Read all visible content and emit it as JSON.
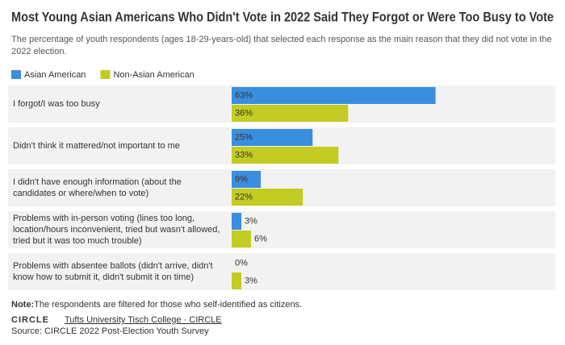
{
  "chart_data": {
    "type": "bar",
    "orientation": "horizontal",
    "title": "Most Young Asian Americans Who Didn't Vote in 2022 Said They Forgot or Were Too Busy to Vote",
    "subtitle": "The percentage of youth respondents (ages 18-29-years-old) that selected each response as the main reason that they did not vote in the 2022 election.",
    "categories": [
      "I forgot/I was too busy",
      "Didn't think it mattered/not important to me",
      "I didn't have enough information (about the candidates or where/when to vote)",
      "Problems with in-person voting (lines too long, location/hours inconvenient, tried but wasn't allowed, tried but it was too much trouble)",
      "Problems with absentee ballots (didn't arrive, didn't know how to submit it, didn't submit it on time)"
    ],
    "series": [
      {
        "name": "Asian American",
        "color": "#3a8ede",
        "values": [
          63,
          25,
          9,
          3,
          0
        ],
        "value_labels": [
          "63%",
          "25%",
          "9%",
          "3%",
          "0%"
        ]
      },
      {
        "name": "Non-Asian American",
        "color": "#c2cc23",
        "values": [
          36,
          33,
          22,
          6,
          3
        ],
        "value_labels": [
          "36%",
          "33%",
          "22%",
          "6%",
          "3%"
        ]
      }
    ],
    "xlim": [
      0,
      100
    ],
    "legend": "top-left"
  },
  "footer": {
    "note_label": "Note:",
    "note": "The respondents are filtered for those who self-identified as citizens.",
    "logo": "CIRCLE",
    "link": "Tufts University Tisch College · CIRCLE",
    "source": "Source: CIRCLE 2022 Post-Election Youth Survey"
  }
}
